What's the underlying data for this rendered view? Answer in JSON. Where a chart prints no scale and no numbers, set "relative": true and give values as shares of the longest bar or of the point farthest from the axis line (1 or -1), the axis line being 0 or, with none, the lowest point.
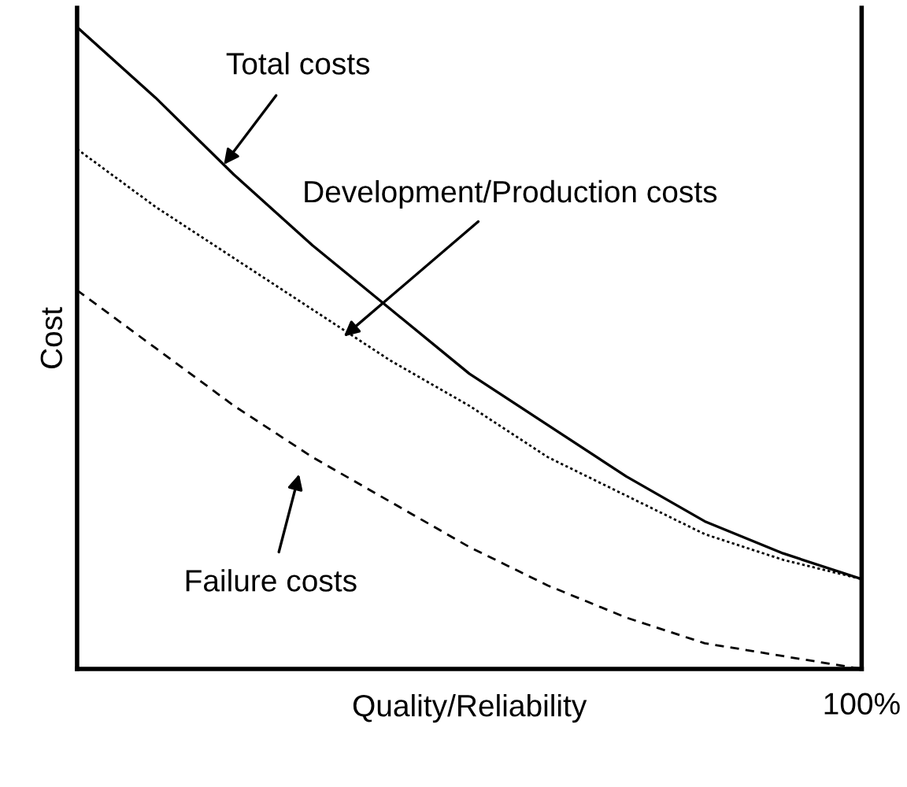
{
  "chart_data": {
    "type": "line",
    "relative": true,
    "xlabel": "Quality/Reliability",
    "ylabel": "Cost",
    "categories": [
      null,
      null,
      null,
      null,
      null,
      null,
      null,
      null,
      null,
      null,
      null
    ],
    "series": [
      {
        "color": "#000000",
        "line_style": "solid",
        "values": [
          1.0,
          0.89,
          0.77,
          0.66,
          0.56,
          0.46,
          0.38,
          0.3,
          0.23,
          0.18,
          0.14
        ]
      },
      {
        "color": "#000000",
        "line_style": "dotted",
        "values": [
          0.81,
          0.72,
          0.64,
          0.56,
          0.48,
          0.41,
          0.33,
          0.27,
          0.21,
          0.17,
          0.14
        ]
      },
      {
        "color": "#000000",
        "line_style": "dashed",
        "values": [
          0.59,
          0.5,
          0.41,
          0.33,
          0.26,
          0.19,
          0.13,
          0.08,
          0.04,
          0.02,
          0.0
        ]
      }
    ],
    "annotations": [
      "Total costs",
      "Development/Production costs",
      "Failure costs",
      "100%"
    ],
    "legend": false
  }
}
